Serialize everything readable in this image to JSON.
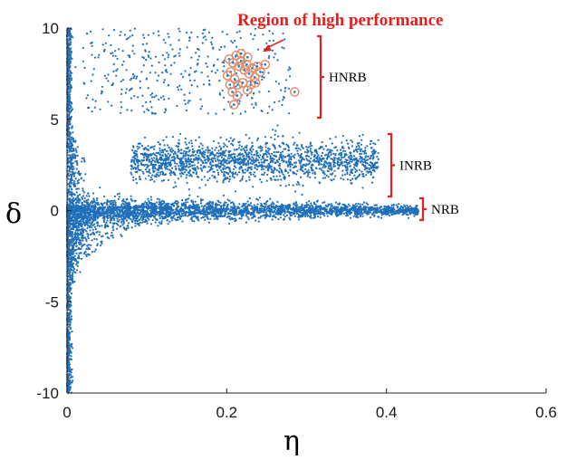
{
  "chart_data": {
    "type": "scatter",
    "title": "",
    "xlabel": "η",
    "ylabel": "δ",
    "xlim": [
      0,
      0.6
    ],
    "ylim": [
      -10,
      10
    ],
    "x_ticks": [
      {
        "value": 0,
        "label": "0"
      },
      {
        "value": 0.2,
        "label": "0.2"
      },
      {
        "value": 0.4,
        "label": "0.4"
      },
      {
        "value": 0.6,
        "label": "0.6"
      }
    ],
    "y_ticks": [
      {
        "value": 10,
        "label": "10"
      },
      {
        "value": 5,
        "label": "5"
      },
      {
        "value": 0,
        "label": "0"
      },
      {
        "value": -5,
        "label": "-5"
      },
      {
        "value": -10,
        "label": "-10"
      }
    ],
    "grid": false,
    "colors": {
      "points": "#1f6fba",
      "highlight_ring": "#e08a6a",
      "bracket": "#e0211d",
      "annotation": "#e0211d"
    },
    "clusters": [
      {
        "label": "HNRB",
        "x_range": [
          0.02,
          0.32
        ],
        "y_range": [
          5.0,
          10.0
        ],
        "y_center": 7.9
      },
      {
        "label": "INRB",
        "x_range": [
          0.08,
          0.39
        ],
        "y_range": [
          1.0,
          4.0
        ],
        "y_center": 2.7
      },
      {
        "label": "NRB",
        "x_range": [
          0.0,
          0.44
        ],
        "y_range": [
          -0.3,
          0.3
        ],
        "y_center": 0.0
      }
    ],
    "highlighted_points": [
      {
        "x": 0.203,
        "y": 8.3
      },
      {
        "x": 0.208,
        "y": 8.1
      },
      {
        "x": 0.212,
        "y": 8.5
      },
      {
        "x": 0.215,
        "y": 7.9
      },
      {
        "x": 0.218,
        "y": 8.2
      },
      {
        "x": 0.222,
        "y": 7.7
      },
      {
        "x": 0.225,
        "y": 8.0
      },
      {
        "x": 0.228,
        "y": 7.5
      },
      {
        "x": 0.232,
        "y": 7.8
      },
      {
        "x": 0.235,
        "y": 7.3
      },
      {
        "x": 0.238,
        "y": 7.9
      },
      {
        "x": 0.242,
        "y": 7.6
      },
      {
        "x": 0.205,
        "y": 7.6
      },
      {
        "x": 0.21,
        "y": 7.2
      },
      {
        "x": 0.214,
        "y": 6.9
      },
      {
        "x": 0.22,
        "y": 7.0
      },
      {
        "x": 0.226,
        "y": 6.6
      },
      {
        "x": 0.23,
        "y": 6.9
      },
      {
        "x": 0.236,
        "y": 7.0
      },
      {
        "x": 0.207,
        "y": 6.5
      },
      {
        "x": 0.213,
        "y": 6.3
      },
      {
        "x": 0.204,
        "y": 6.9
      },
      {
        "x": 0.209,
        "y": 5.8
      },
      {
        "x": 0.285,
        "y": 6.5
      },
      {
        "x": 0.248,
        "y": 8.0
      },
      {
        "x": 0.218,
        "y": 8.6
      },
      {
        "x": 0.226,
        "y": 8.4
      },
      {
        "x": 0.201,
        "y": 7.4
      }
    ],
    "annotation": {
      "text": "Region of high performance",
      "arrow_to": {
        "x": 0.245,
        "y": 8.7
      }
    }
  }
}
